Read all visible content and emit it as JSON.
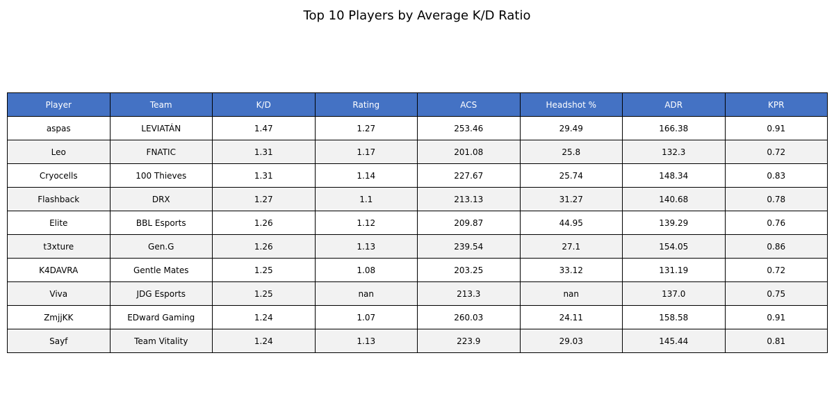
{
  "chart_data": {
    "type": "table",
    "title": "Top 10 Players by Average K/D Ratio",
    "header_color": "#4472c4",
    "stripe_color": "#f2f2f2",
    "columns": [
      "Player",
      "Team",
      "K/D",
      "Rating",
      "ACS",
      "Headshot %",
      "ADR",
      "KPR"
    ],
    "rows": [
      [
        "aspas",
        "LEVIATÁN",
        "1.47",
        "1.27",
        "253.46",
        "29.49",
        "166.38",
        "0.91"
      ],
      [
        "Leo",
        "FNATIC",
        "1.31",
        "1.17",
        "201.08",
        "25.8",
        "132.3",
        "0.72"
      ],
      [
        "Cryocells",
        "100 Thieves",
        "1.31",
        "1.14",
        "227.67",
        "25.74",
        "148.34",
        "0.83"
      ],
      [
        "Flashback",
        "DRX",
        "1.27",
        "1.1",
        "213.13",
        "31.27",
        "140.68",
        "0.78"
      ],
      [
        "Elite",
        "BBL Esports",
        "1.26",
        "1.12",
        "209.87",
        "44.95",
        "139.29",
        "0.76"
      ],
      [
        "t3xture",
        "Gen.G",
        "1.26",
        "1.13",
        "239.54",
        "27.1",
        "154.05",
        "0.86"
      ],
      [
        "K4DAVRA",
        "Gentle Mates",
        "1.25",
        "1.08",
        "203.25",
        "33.12",
        "131.19",
        "0.72"
      ],
      [
        "Viva",
        "JDG Esports",
        "1.25",
        "nan",
        "213.3",
        "nan",
        "137.0",
        "0.75"
      ],
      [
        "ZmjjKK",
        "EDward Gaming",
        "1.24",
        "1.07",
        "260.03",
        "24.11",
        "158.58",
        "0.91"
      ],
      [
        "Sayf",
        "Team Vitality",
        "1.24",
        "1.13",
        "223.9",
        "29.03",
        "145.44",
        "0.81"
      ]
    ]
  }
}
